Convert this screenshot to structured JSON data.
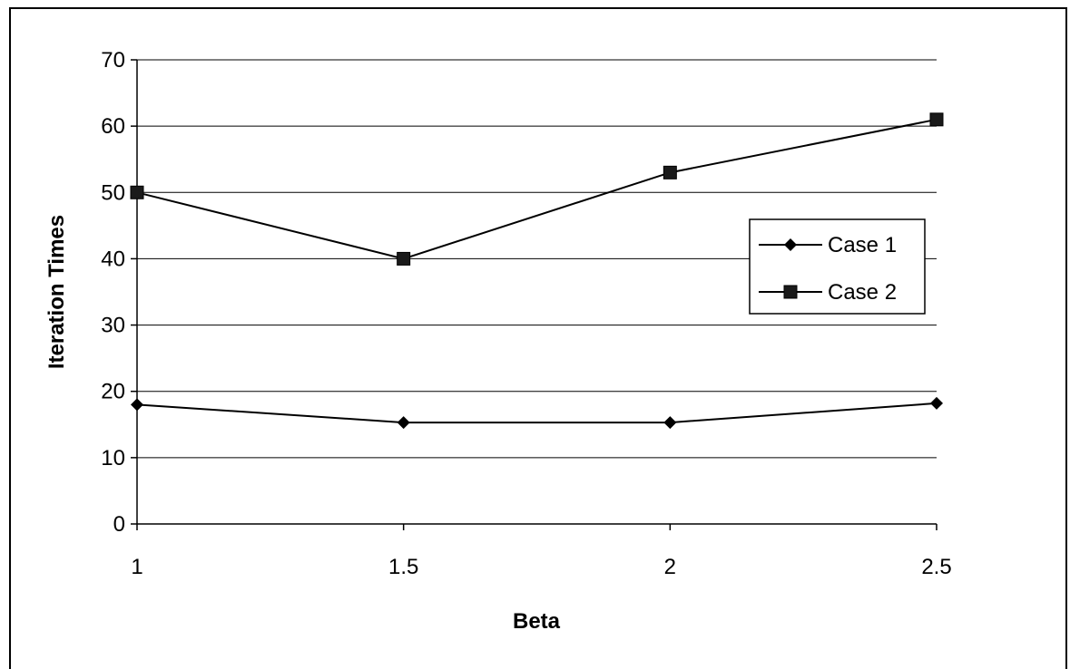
{
  "chart_data": {
    "type": "line",
    "title": "",
    "xlabel": "Beta",
    "ylabel": "Iteration Times",
    "x": [
      1,
      1.5,
      2,
      2.5
    ],
    "x_tick_labels": [
      "1",
      "1.5",
      "2",
      "2.5"
    ],
    "ylim": [
      0,
      70
    ],
    "y_ticks": [
      0,
      10,
      20,
      30,
      40,
      50,
      60,
      70
    ],
    "grid": "horizontal",
    "legend_position": "right",
    "series": [
      {
        "name": "Case 1",
        "marker": "diamond",
        "values": [
          18,
          15.3,
          15.3,
          18.2
        ],
        "color": "#000000"
      },
      {
        "name": "Case 2",
        "marker": "square",
        "values": [
          50,
          40,
          53,
          61
        ],
        "color": "#000000"
      }
    ]
  }
}
